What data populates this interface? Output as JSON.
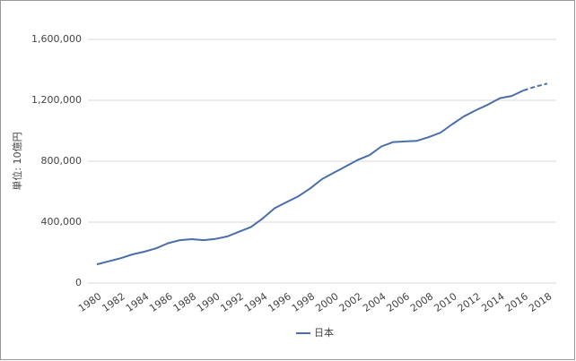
{
  "chart_data": {
    "type": "line",
    "y_label": "単位: 10億円",
    "categories": [
      "1980",
      null,
      "1982",
      null,
      "1984",
      null,
      "1986",
      null,
      "1988",
      null,
      "1990",
      null,
      "1992",
      null,
      "1994",
      null,
      "1996",
      null,
      "1998",
      null,
      "2000",
      null,
      "2002",
      null,
      "2004",
      null,
      "2006",
      null,
      "2008",
      null,
      "2010",
      null,
      "2012",
      null,
      "2014",
      null,
      "2016",
      null,
      "2018"
    ],
    "series": [
      {
        "name": "日本",
        "color": "#4a6ea9",
        "dash_from": "2016",
        "values": [
          123000,
          143000,
          163000,
          188000,
          206000,
          228000,
          262000,
          282000,
          288000,
          282000,
          290000,
          306000,
          337000,
          368000,
          425000,
          492000,
          532000,
          570000,
          622000,
          683000,
          725000,
          766000,
          808000,
          840000,
          897000,
          926000,
          930000,
          934000,
          958000,
          988000,
          1044000,
          1096000,
          1136000,
          1172000,
          1214000,
          1229000,
          1265000,
          1290000,
          1310000
        ]
      }
    ],
    "ylim": [
      0,
      1600000
    ],
    "yticks": [
      0,
      {
        "value": 400000,
        "label": "400,000"
      },
      {
        "value": 800000,
        "label": "800,000"
      },
      {
        "value": 1200000,
        "label": "1,200,000"
      },
      {
        "value": 1600000,
        "label": "1,600,000"
      }
    ],
    "grid": true,
    "legend": "bottom"
  }
}
